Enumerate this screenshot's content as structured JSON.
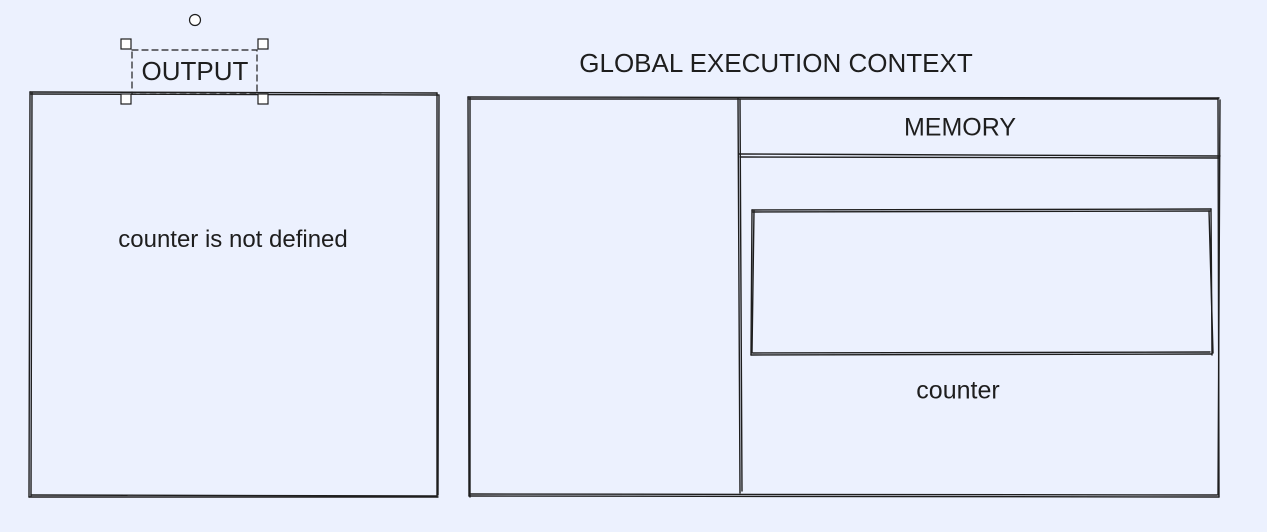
{
  "output": {
    "label": "OUTPUT",
    "message": "counter is not defined"
  },
  "execution_context": {
    "title": "GLOBAL EXECUTION CONTEXT",
    "memory_label": "MEMORY",
    "variable_name": "counter"
  },
  "colors": {
    "background": "#ecf1fe",
    "stroke": "#1e1e1e"
  }
}
